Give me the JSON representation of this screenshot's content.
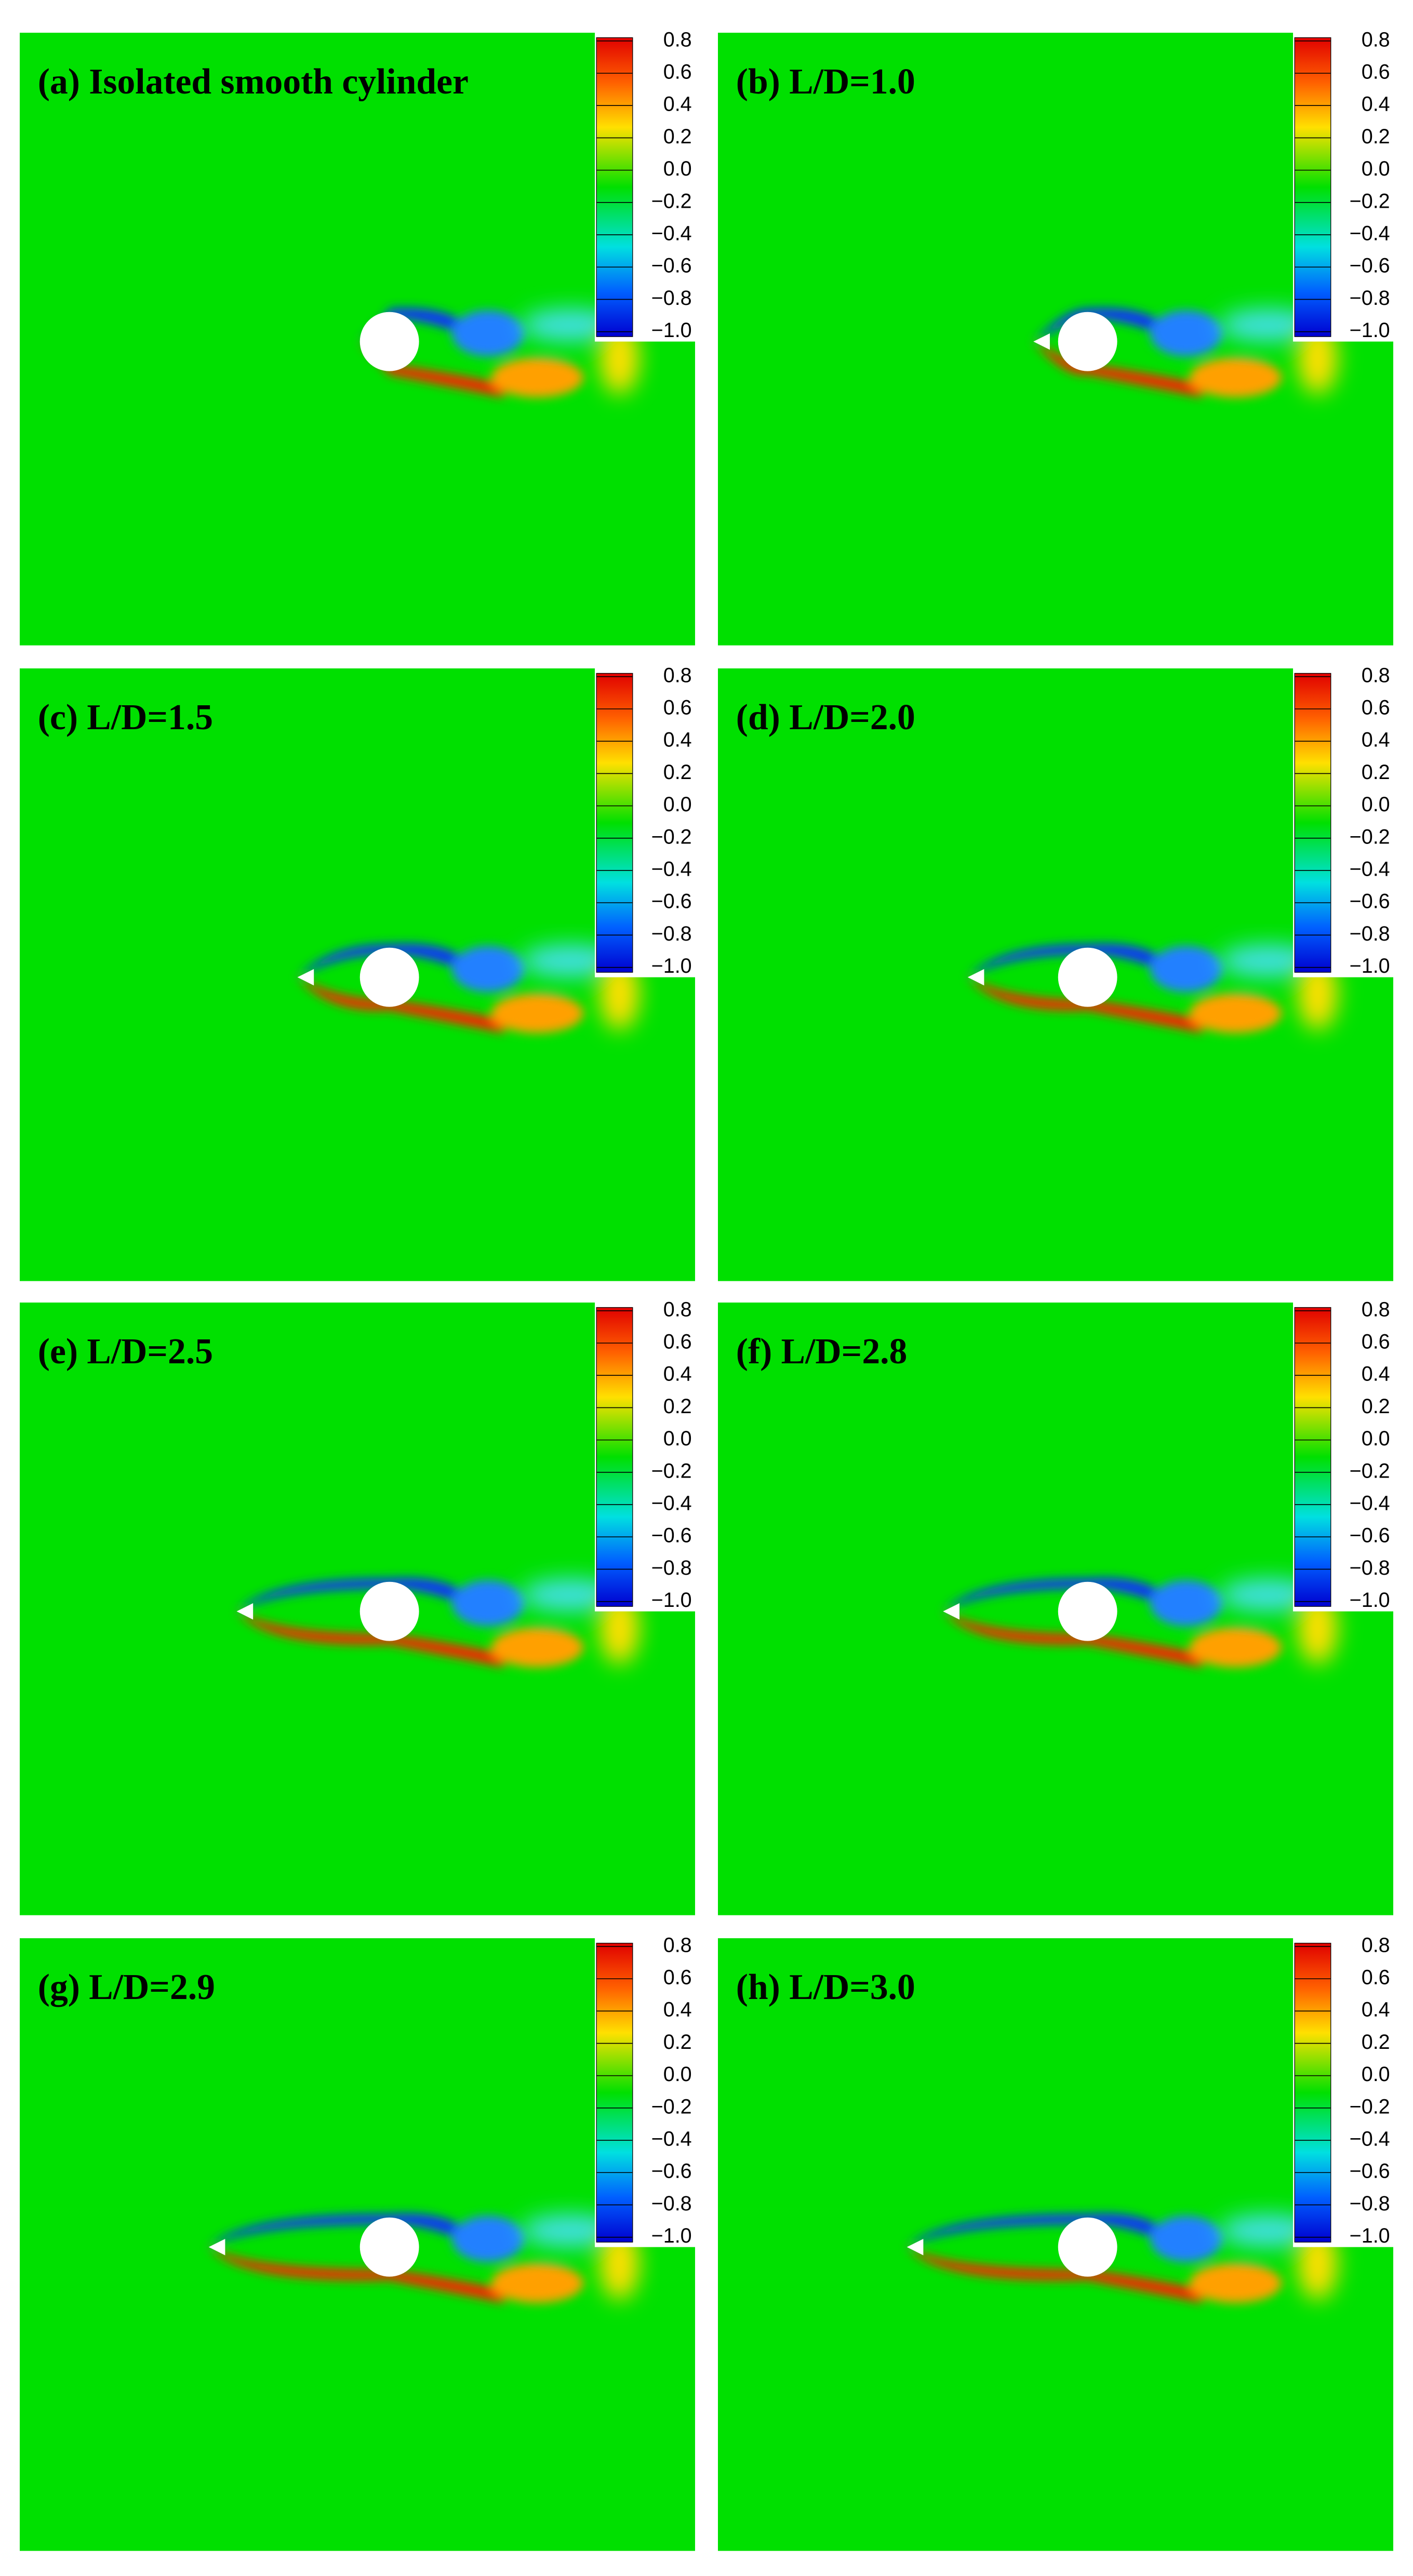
{
  "panels": [
    {
      "title": "(a) Isolated smooth cylinder"
    },
    {
      "title": "(b) L/D=1.0"
    },
    {
      "title": "(c) L/D=1.5"
    },
    {
      "title": "(d) L/D=2.0"
    },
    {
      "title": "(e) L/D=2.5"
    },
    {
      "title": "(f) L/D=2.8"
    },
    {
      "title": "(g) L/D=2.9"
    },
    {
      "title": "(h) L/D=3.0"
    }
  ],
  "colorbar": {
    "ticks": [
      0.8,
      0.6,
      0.4,
      0.2,
      {
        "value": 0,
        "label": "0.0"
      },
      {
        "value": -0.2,
        "label": "−0.2"
      },
      {
        "value": -0.4,
        "label": "−0.4"
      },
      {
        "value": -0.6,
        "label": "−0.6"
      },
      {
        "value": -0.8,
        "label": "−0.8"
      },
      {
        "value": -1,
        "label": "−1.0"
      }
    ]
  }
}
